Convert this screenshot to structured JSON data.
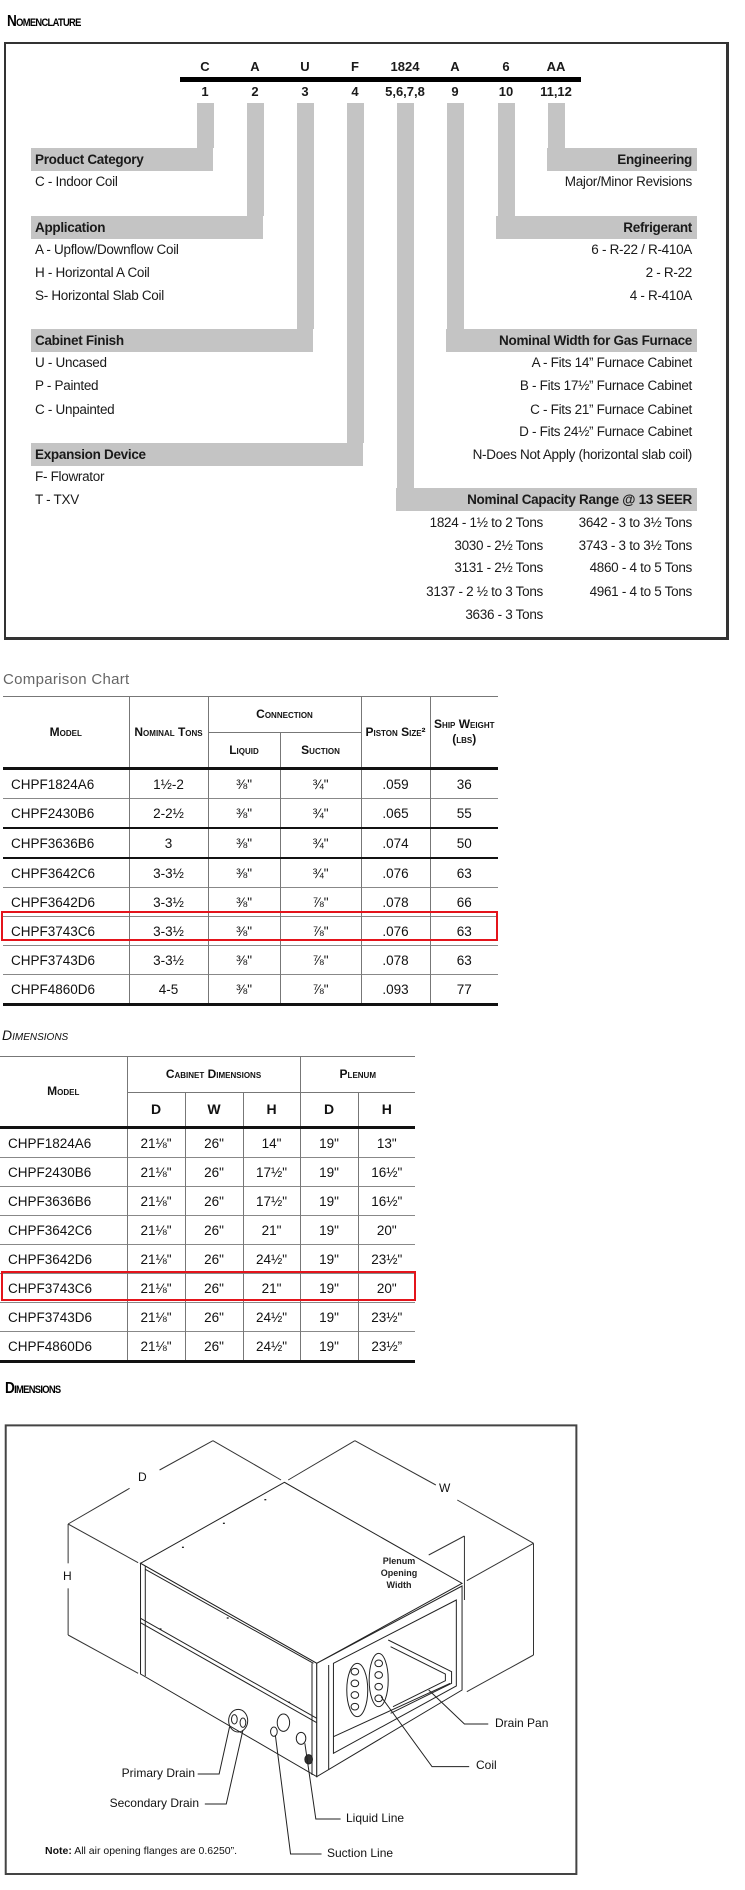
{
  "nomenclature": {
    "title": "Nomenclature",
    "code": [
      {
        "char": "C",
        "pos": "1"
      },
      {
        "char": "A",
        "pos": "2"
      },
      {
        "char": "U",
        "pos": "3"
      },
      {
        "char": "F",
        "pos": "4"
      },
      {
        "char": "1824",
        "pos": "5,6,7,8"
      },
      {
        "char": "A",
        "pos": "9"
      },
      {
        "char": "6",
        "pos": "10"
      },
      {
        "char": "AA",
        "pos": "11,12"
      }
    ],
    "sections": {
      "product_category": {
        "title": "Product Category",
        "items": [
          "C - Indoor Coil"
        ]
      },
      "application": {
        "title": "Application",
        "items": [
          "A - Upflow/Downflow Coil",
          "H - Horizontal A Coil",
          "S- Horizontal Slab Coil"
        ]
      },
      "cabinet_finish": {
        "title": "Cabinet Finish",
        "items": [
          "U - Uncased",
          "P - Painted",
          "C - Unpainted"
        ]
      },
      "expansion_device": {
        "title": "Expansion Device",
        "items": [
          "F- Flowrator",
          "T - TXV"
        ]
      },
      "engineering": {
        "title": "Engineering",
        "items": [
          "Major/Minor Revisions"
        ]
      },
      "refrigerant": {
        "title": "Refrigerant",
        "items": [
          "6 - R-22 / R-410A",
          "2 - R-22",
          "4 - R-410A"
        ]
      },
      "nominal_width": {
        "title": "Nominal Width for Gas Furnace",
        "items": [
          "A - Fits 14” Furnace Cabinet",
          "B - Fits 17½” Furnace Cabinet",
          "C - Fits 21” Furnace Cabinet",
          "D - Fits 24½” Furnace Cabinet",
          "N-Does Not Apply (horizontal slab coil)"
        ]
      },
      "capacity": {
        "title": "Nominal Capacity Range @ 13 SEER",
        "left": [
          "1824 - 1½ to 2 Tons",
          "3030 - 2½ Tons",
          "3131 - 2½ Tons",
          "3137 - 2 ½ to 3 Tons",
          "3636 - 3 Tons"
        ],
        "right": [
          "3642 - 3 to 3½ Tons",
          "3743 - 3 to 3½ Tons",
          "4860 - 4 to 5 Tons",
          "4961 - 4 to 5 Tons"
        ]
      }
    }
  },
  "comparison": {
    "title": "Comparison Chart",
    "headers": {
      "model": "Model",
      "nominal_tons": "Nominal Tons",
      "connection": "Connection",
      "liquid": "Liquid",
      "suction": "Suction",
      "piston_size": "Piston Size²",
      "ship_weight": "Ship Weight (lbs)"
    },
    "rows": [
      [
        "CHPF1824A6",
        "1½-2",
        "⅜\"",
        "¾\"",
        ".059",
        "36"
      ],
      [
        "CHPF2430B6",
        "2-2½",
        "⅜\"",
        "¾\"",
        ".065",
        "55"
      ],
      [
        "CHPF3636B6",
        "3",
        "⅜\"",
        "¾\"",
        ".074",
        "50"
      ],
      [
        "CHPF3642C6",
        "3-3½",
        "⅜\"",
        "¾\"",
        ".076",
        "63"
      ],
      [
        "CHPF3642D6",
        "3-3½",
        "⅜\"",
        "⅞\"",
        ".078",
        "66"
      ],
      [
        "CHPF3743C6",
        "3-3½",
        "⅜\"",
        "⅞\"",
        ".076",
        "63"
      ],
      [
        "CHPF3743D6",
        "3-3½",
        "⅜\"",
        "⅞\"",
        ".078",
        "63"
      ],
      [
        "CHPF4860D6",
        "4-5",
        "⅜\"",
        "⅞\"",
        ".093",
        "77"
      ]
    ],
    "highlighted_model": "CHPF3743C6",
    "highlight_color": "#e4141b"
  },
  "dimensions_table": {
    "title": "Dimensions",
    "headers": {
      "model": "Model",
      "cabinet": "Cabinet Dimensions",
      "plenum": "Plenum",
      "d": "D",
      "w": "W",
      "h": "H",
      "pd": "D",
      "ph": "H"
    },
    "rows": [
      [
        "CHPF1824A6",
        "21⅛\"",
        "26\"",
        "14\"",
        "19\"",
        "13\""
      ],
      [
        "CHPF2430B6",
        "21⅛\"",
        "26\"",
        "17½\"",
        "19\"",
        "16½\""
      ],
      [
        "CHPF3636B6",
        "21⅛\"",
        "26\"",
        "17½\"",
        "19\"",
        "16½\""
      ],
      [
        "CHPF3642C6",
        "21⅛\"",
        "26\"",
        "21\"",
        "19\"",
        "20\""
      ],
      [
        "CHPF3642D6",
        "21⅛\"",
        "26\"",
        "24½\"",
        "19\"",
        "23½\""
      ],
      [
        "CHPF3743C6",
        "21⅛\"",
        "26\"",
        "21\"",
        "19\"",
        "20\""
      ],
      [
        "CHPF3743D6",
        "21⅛\"",
        "26\"",
        "24½\"",
        "19\"",
        "23½\""
      ],
      [
        "CHPF4860D6",
        "21⅛\"",
        "26\"",
        "24½\"",
        "19\"",
        "23½”"
      ]
    ],
    "highlighted_model": "CHPF3743C6"
  },
  "diagram": {
    "title": "Dimensions",
    "labels": {
      "d": "D",
      "w": "W",
      "h": "H",
      "plenum": [
        "Plenum",
        "Opening",
        "Width"
      ],
      "drain_pan": "Drain Pan",
      "coil": "Coil",
      "primary_drain": "Primary Drain",
      "secondary_drain": "Secondary Drain",
      "liquid_line": "Liquid Line",
      "suction_line": "Suction Line",
      "note_label": "Note:",
      "note_text": "All air opening flanges are 0.6250”."
    }
  }
}
